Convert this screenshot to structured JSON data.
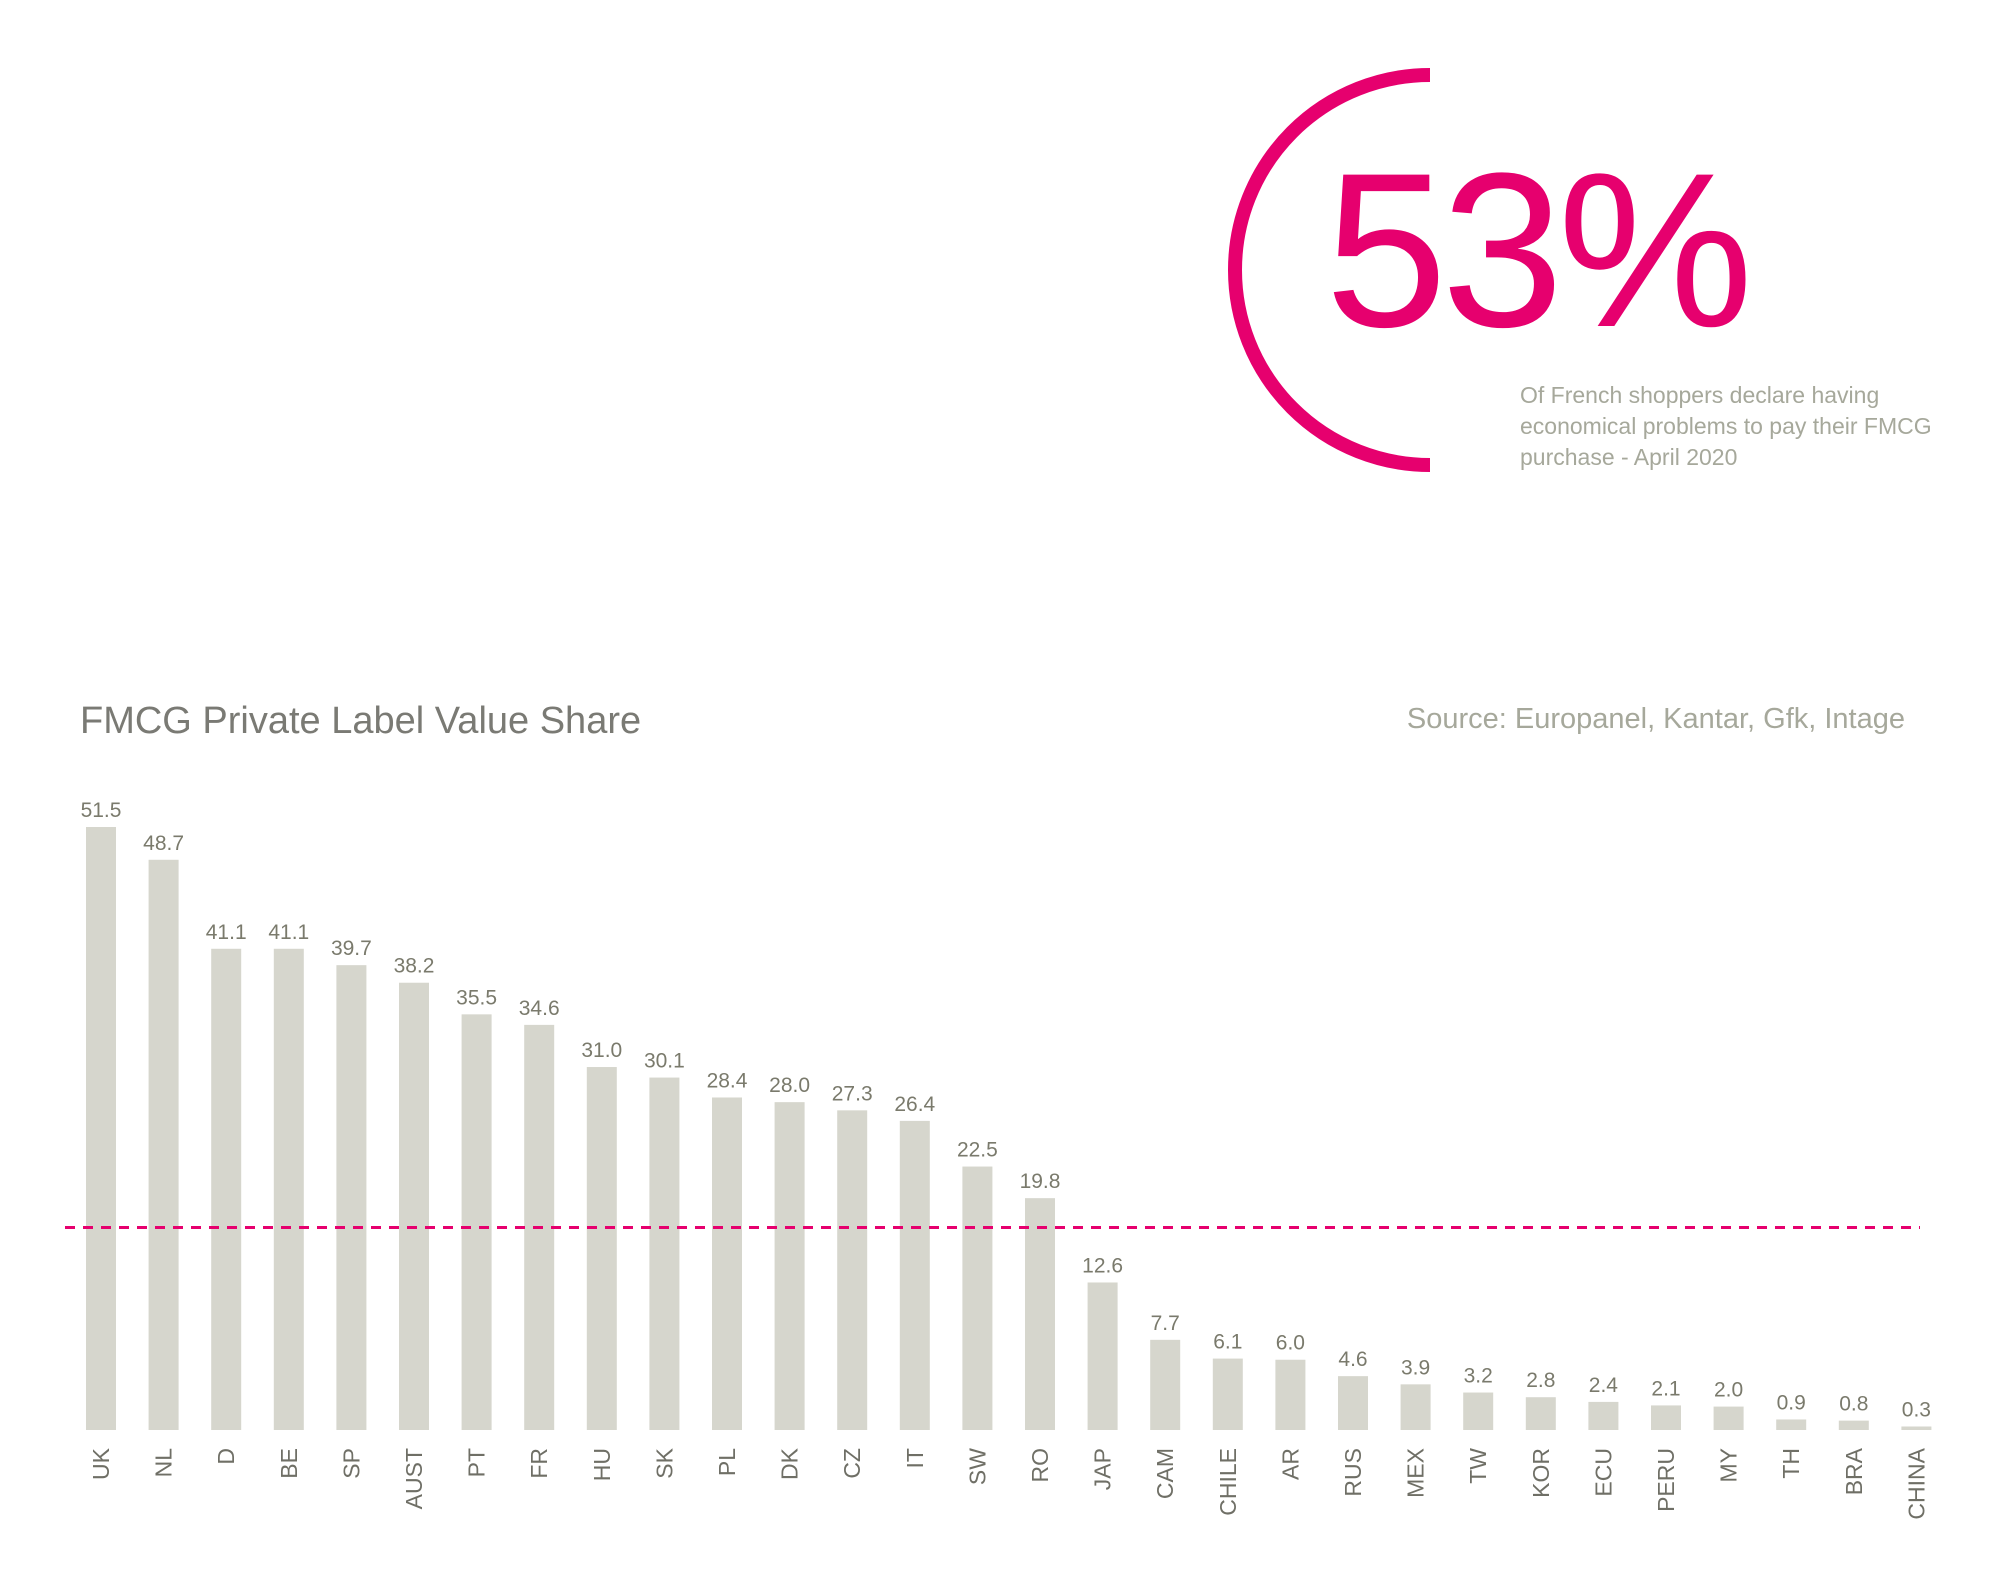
{
  "highlight": {
    "number": "53%",
    "caption": "Of French shoppers declare having economical problems to pay their FMCG purchase - April 2020"
  },
  "colors": {
    "accent": "#e6006e",
    "bar": "#d6d6cd",
    "text": "#7a7a74",
    "muted": "#a6a89b"
  },
  "chart_data": {
    "type": "bar",
    "title": "FMCG Private Label Value Share",
    "source": "Source: Europanel, Kantar, Gfk, Intage",
    "xlabel": "",
    "ylabel": "",
    "ylim": [
      0,
      51.5
    ],
    "grid": false,
    "categories": [
      "UK",
      "NL",
      "D",
      "BE",
      "SP",
      "AUST",
      "PT",
      "FR",
      "HU",
      "SK",
      "PL",
      "DK",
      "CZ",
      "IT",
      "SW",
      "RO",
      "JAP",
      "CAM",
      "CHILE",
      "AR",
      "RUS",
      "MEX",
      "TW",
      "KOR",
      "ECU",
      "PERU",
      "MY",
      "TH",
      "BRA",
      "CHINA"
    ],
    "values": [
      51.5,
      48.7,
      41.1,
      41.1,
      39.7,
      38.2,
      35.5,
      34.6,
      31.0,
      30.1,
      28.4,
      28.0,
      27.3,
      26.4,
      22.5,
      19.8,
      12.6,
      7.7,
      6.1,
      6.0,
      4.6,
      3.9,
      3.2,
      2.8,
      2.4,
      2.1,
      2.0,
      0.9,
      0.8,
      0.3
    ],
    "reference_line": {
      "value": 17.3,
      "style": "dashed"
    }
  }
}
